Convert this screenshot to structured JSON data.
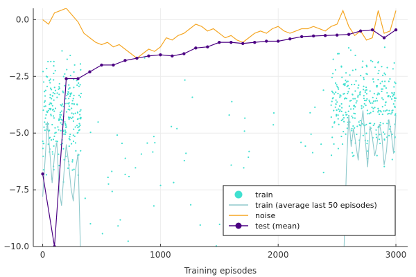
{
  "chart_data": {
    "type": "line",
    "title": "",
    "xlabel": "Training episodes",
    "ylabel": "",
    "xlim": [
      -80,
      3100
    ],
    "ylim": [
      -10,
      0.5
    ],
    "xticks": [
      0,
      1000,
      2000,
      3000
    ],
    "xtick_labels": [
      "0",
      "1000",
      "2000",
      "3000"
    ],
    "yticks": [
      0,
      -2.5,
      -5,
      -7.5,
      -10
    ],
    "ytick_labels": [
      "0.0",
      "−2.5",
      "−5.0",
      "−7.5",
      "−10.0"
    ],
    "grid": true,
    "legend_position": "bottom-right",
    "series": [
      {
        "name": "train",
        "kind": "scatter",
        "color": "#40E0D0",
        "clusters": [
          {
            "x_range": [
              0,
              330
            ],
            "y_center": -4.2,
            "y_spread": 2.2,
            "count": 260
          },
          {
            "x_range": [
              330,
              2450
            ],
            "y_center": -6.0,
            "y_spread": 3.5,
            "count": 60
          },
          {
            "x_range": [
              2450,
              3000
            ],
            "y_center": -3.8,
            "y_spread": 2.0,
            "count": 320
          }
        ]
      },
      {
        "name": "train (average last 50 episodes)",
        "kind": "line",
        "color": "#8FC9CC",
        "x": [
          0,
          20,
          40,
          60,
          80,
          100,
          120,
          140,
          160,
          180,
          200,
          220,
          240,
          260,
          280,
          300,
          320,
          2560,
          2580,
          2600,
          2620,
          2640,
          2660,
          2680,
          2700,
          2720,
          2740,
          2760,
          2780,
          2800,
          2820,
          2840,
          2860,
          2880,
          2900,
          2920,
          2940,
          2960,
          2980,
          3000
        ],
        "y": [
          -7.8,
          -6.2,
          -4.5,
          -5.8,
          -7.2,
          -6.0,
          -5.4,
          -7.5,
          -8.2,
          -6.8,
          -5.5,
          -6.3,
          -7.4,
          -8.0,
          -6.6,
          -5.9,
          -10.0,
          -10.0,
          -6.5,
          -4.2,
          -5.6,
          -4.8,
          -5.5,
          -6.2,
          -4.9,
          -4.0,
          -5.3,
          -6.5,
          -4.7,
          -5.2,
          -6.0,
          -5.5,
          -4.6,
          -5.1,
          -6.4,
          -5.8,
          -4.4,
          -5.0,
          -5.9,
          -4.2
        ]
      },
      {
        "name": "noise",
        "kind": "line",
        "color": "#F5A623",
        "x": [
          0,
          50,
          100,
          150,
          200,
          250,
          300,
          350,
          400,
          450,
          500,
          550,
          600,
          650,
          700,
          750,
          800,
          850,
          900,
          950,
          1000,
          1050,
          1100,
          1150,
          1200,
          1250,
          1300,
          1350,
          1400,
          1450,
          1500,
          1550,
          1600,
          1650,
          1700,
          1750,
          1800,
          1850,
          1900,
          1950,
          2000,
          2050,
          2100,
          2150,
          2200,
          2250,
          2300,
          2350,
          2400,
          2450,
          2500,
          2550,
          2600,
          2650,
          2700,
          2750,
          2800,
          2850,
          2900,
          2950,
          3000
        ],
        "y": [
          0.0,
          -0.2,
          0.3,
          0.4,
          0.5,
          0.2,
          -0.1,
          -0.6,
          -0.8,
          -1.0,
          -1.1,
          -1.0,
          -1.2,
          -1.1,
          -1.3,
          -1.5,
          -1.7,
          -1.5,
          -1.3,
          -1.4,
          -1.2,
          -0.8,
          -0.9,
          -0.7,
          -0.6,
          -0.4,
          -0.2,
          -0.3,
          -0.5,
          -0.4,
          -0.6,
          -0.8,
          -0.7,
          -0.9,
          -1.0,
          -0.8,
          -0.6,
          -0.5,
          -0.6,
          -0.4,
          -0.3,
          -0.5,
          -0.6,
          -0.5,
          -0.4,
          -0.4,
          -0.3,
          -0.4,
          -0.5,
          -0.3,
          -0.2,
          0.4,
          -0.3,
          -0.7,
          -0.5,
          -0.9,
          -0.8,
          0.4,
          -0.6,
          -0.5,
          0.4
        ]
      },
      {
        "name": "test (mean)",
        "kind": "line-markers",
        "color": "#4B0082",
        "x": [
          0,
          100,
          200,
          300,
          400,
          500,
          600,
          700,
          800,
          900,
          1000,
          1100,
          1200,
          1300,
          1400,
          1500,
          1600,
          1700,
          1800,
          1900,
          2000,
          2100,
          2200,
          2300,
          2400,
          2500,
          2600,
          2700,
          2800,
          2900,
          3000
        ],
        "y": [
          -6.8,
          -10.0,
          -2.6,
          -2.6,
          -2.3,
          -2.0,
          -2.0,
          -1.8,
          -1.7,
          -1.6,
          -1.55,
          -1.6,
          -1.5,
          -1.25,
          -1.2,
          -1.0,
          -1.0,
          -1.05,
          -1.0,
          -0.95,
          -0.95,
          -0.85,
          -0.75,
          -0.72,
          -0.7,
          -0.68,
          -0.65,
          -0.5,
          -0.45,
          -0.8,
          -0.45
        ]
      }
    ]
  }
}
